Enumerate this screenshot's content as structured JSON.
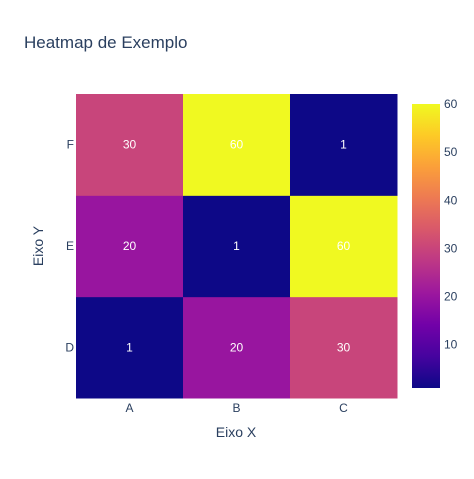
{
  "chart_data": {
    "type": "heatmap",
    "title": "Heatmap de Exemplo",
    "xlabel": "Eixo X",
    "ylabel": "Eixo Y",
    "x_categories": [
      "A",
      "B",
      "C"
    ],
    "y_categories": [
      "D",
      "E",
      "F"
    ],
    "z": [
      [
        1,
        20,
        30
      ],
      [
        20,
        1,
        60
      ],
      [
        30,
        60,
        1
      ]
    ],
    "zrange": [
      1,
      60
    ],
    "colorscale": "plasma",
    "colorbar_ticks": [
      10,
      20,
      30,
      40,
      50,
      60
    ],
    "show_cell_text": true,
    "grid": false
  },
  "colors": {
    "text": "#2a3f5f",
    "cell_text_light": "#ffffff",
    "plasma_stops": [
      "#0d0887",
      "#46039f",
      "#7201a8",
      "#9c179e",
      "#bd3786",
      "#d8576b",
      "#ed7953",
      "#fb9f3a",
      "#fdca26",
      "#f0f921"
    ]
  }
}
